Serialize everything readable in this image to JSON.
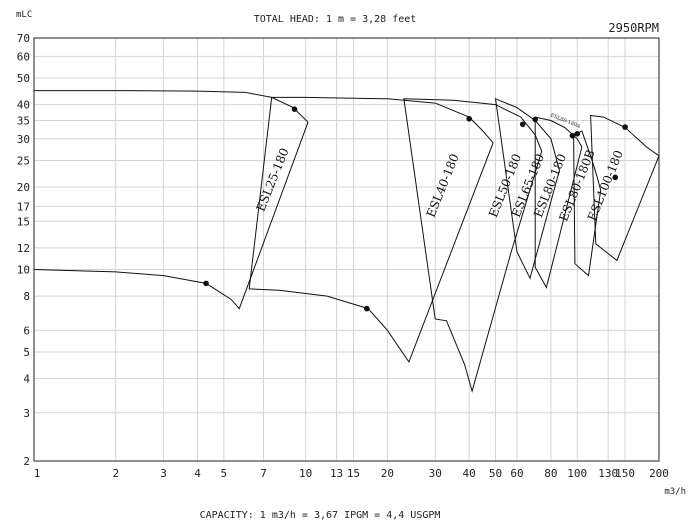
{
  "chart_data": {
    "type": "line",
    "title": "TOTAL HEAD: 1 m = 3,28 feet",
    "speed": "2950RPM",
    "ylabel": "mLC",
    "xlabel": "m3/h",
    "footnote": "CAPACITY: 1 m3/h   = 3,67 IPGM = 4,4 USGPM",
    "xscale": "log",
    "yscale": "log",
    "xlim": [
      1,
      200
    ],
    "ylim": [
      2,
      70
    ],
    "grid": true,
    "x_ticks": [
      {
        "v": 1,
        "label": "1"
      },
      {
        "v": 2,
        "label": "2"
      },
      {
        "v": 3,
        "label": "3"
      },
      {
        "v": 4,
        "label": "4"
      },
      {
        "v": 5,
        "label": "5"
      },
      {
        "v": 7,
        "label": "7"
      },
      {
        "v": 10,
        "label": "10"
      },
      {
        "v": 13,
        "label": "13"
      },
      {
        "v": 15,
        "label": "15"
      },
      {
        "v": 20,
        "label": "20"
      },
      {
        "v": 30,
        "label": "30"
      },
      {
        "v": 40,
        "label": "40"
      },
      {
        "v": 50,
        "label": "50"
      },
      {
        "v": 60,
        "label": "60"
      },
      {
        "v": 80,
        "label": "80"
      },
      {
        "v": 100,
        "label": "100"
      },
      {
        "v": 130,
        "label": "130"
      },
      {
        "v": 150,
        "label": "150"
      },
      {
        "v": 200,
        "label": "200"
      }
    ],
    "y_ticks": [
      {
        "v": 2,
        "label": "2"
      },
      {
        "v": 3,
        "label": "3"
      },
      {
        "v": 4,
        "label": "4"
      },
      {
        "v": 5,
        "label": "5"
      },
      {
        "v": 6,
        "label": "6"
      },
      {
        "v": 8,
        "label": "8"
      },
      {
        "v": 10,
        "label": "10"
      },
      {
        "v": 12,
        "label": "12"
      },
      {
        "v": 15,
        "label": "15"
      },
      {
        "v": 17,
        "label": "17"
      },
      {
        "v": 20,
        "label": "20"
      },
      {
        "v": 25,
        "label": "25"
      },
      {
        "v": 30,
        "label": "30"
      },
      {
        "v": 35,
        "label": "35"
      },
      {
        "v": 40,
        "label": "40"
      },
      {
        "v": 50,
        "label": "50"
      },
      {
        "v": 60,
        "label": "60"
      },
      {
        "v": 70,
        "label": "70"
      }
    ],
    "series": [
      {
        "name": "ESL25-180",
        "label_at": [
          7.8,
          21
        ],
        "polygon": [
          [
            1,
            45
          ],
          [
            2,
            45
          ],
          [
            4,
            44.8
          ],
          [
            6,
            44.3
          ],
          [
            7.5,
            42.5
          ],
          [
            9,
            39
          ],
          [
            10.2,
            34.5
          ],
          [
            5.7,
            7.2
          ],
          [
            5.3,
            7.8
          ],
          [
            4.3,
            8.9
          ],
          [
            3,
            9.5
          ],
          [
            2,
            9.8
          ],
          [
            1,
            10
          ]
        ],
        "bep_points": [
          [
            9.1,
            38.5
          ],
          [
            4.3,
            8.9
          ]
        ]
      },
      {
        "name": "ESL40-180",
        "label_at": [
          33,
          20
        ],
        "polygon": [
          [
            7.5,
            42.5
          ],
          [
            10,
            42.5
          ],
          [
            20,
            42
          ],
          [
            30,
            40.5
          ],
          [
            40,
            36
          ],
          [
            45,
            32
          ],
          [
            49,
            29
          ],
          [
            24,
            4.6
          ],
          [
            20,
            6
          ],
          [
            17,
            7.2
          ],
          [
            12,
            8
          ],
          [
            8,
            8.4
          ],
          [
            6.2,
            8.5
          ]
        ],
        "bep_points": [
          [
            40,
            35.5
          ],
          [
            16.8,
            7.2
          ]
        ]
      },
      {
        "name": "ESL50-180",
        "label_at": [
          56,
          20
        ],
        "polygon": [
          [
            23,
            42
          ],
          [
            35,
            41.5
          ],
          [
            50,
            40
          ],
          [
            62,
            36
          ],
          [
            70,
            31
          ],
          [
            74,
            27
          ],
          [
            57,
            11.5
          ],
          [
            41,
            3.6
          ],
          [
            38.5,
            4.5
          ],
          [
            33,
            6.5
          ],
          [
            30,
            6.6
          ]
        ],
        "bep_points": [
          [
            63,
            33.9
          ]
        ]
      },
      {
        "name": "ESL65-180",
        "label_at": [
          68,
          20
        ],
        "polygon": [
          [
            50,
            42
          ],
          [
            60,
            39
          ],
          [
            70,
            35
          ],
          [
            80,
            30
          ],
          [
            86,
            23
          ],
          [
            67,
            9.3
          ],
          [
            60,
            11.6
          ]
        ],
        "bep_points": [
          [
            70,
            35.3
          ]
        ]
      },
      {
        "name": "ESL80-180",
        "label_at": [
          82,
          20
        ],
        "polygon": [
          [
            70,
            36
          ],
          [
            80,
            35
          ],
          [
            90,
            33
          ],
          [
            100,
            30
          ],
          [
            104,
            28
          ],
          [
            77,
            8.6
          ],
          [
            70,
            10.2
          ]
        ],
        "bep_points": [
          [
            96,
            30.8
          ]
        ]
      },
      {
        "name": "ESL80-180B",
        "label_at": [
          103,
          20
        ],
        "polygon": [
          [
            97,
            31
          ],
          [
            104,
            32
          ],
          [
            112,
            26
          ],
          [
            118,
            22
          ],
          [
            122,
            19.5
          ],
          [
            110,
            9.5
          ],
          [
            98,
            10.5
          ]
        ],
        "bep_points": [
          [
            100,
            31.3
          ],
          [
            138,
            21.7
          ]
        ]
      },
      {
        "name": "ESL100-180",
        "label_at": [
          131,
          20
        ],
        "polygon": [
          [
            112,
            36.5
          ],
          [
            125,
            36
          ],
          [
            150,
            33
          ],
          [
            180,
            28
          ],
          [
            200,
            26
          ],
          [
            140,
            10.8
          ],
          [
            117,
            12.4
          ]
        ],
        "bep_points": [
          [
            150,
            33.1
          ]
        ]
      }
    ],
    "callout_label": {
      "text": "ESL80-180A",
      "at": [
        90,
        34.5
      ]
    }
  }
}
